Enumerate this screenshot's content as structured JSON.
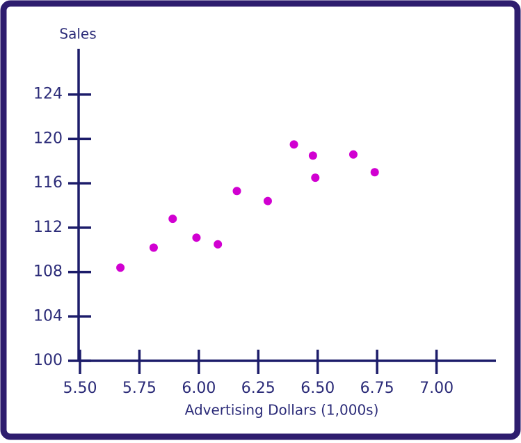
{
  "chart_data": {
    "type": "scatter",
    "xlabel": "Advertising Dollars (1,000s)",
    "ylabel": "Sales",
    "x": [
      5.67,
      5.81,
      5.89,
      5.99,
      6.08,
      6.16,
      6.29,
      6.4,
      6.48,
      6.49,
      6.65,
      6.74
    ],
    "values": [
      108.4,
      110.2,
      112.8,
      111.1,
      110.5,
      115.3,
      114.4,
      119.5,
      118.5,
      116.5,
      118.6,
      117.0
    ],
    "color": "#d100d1",
    "xlim": [
      5.5,
      7.25
    ],
    "ylim": [
      100,
      128
    ],
    "xticks": [
      {
        "value": 5.5,
        "label": "5.50"
      },
      {
        "value": 5.75,
        "label": "5.75"
      },
      {
        "value": 6,
        "label": "6.00"
      },
      {
        "value": 6.25,
        "label": "6.25"
      },
      {
        "value": 6.5,
        "label": "6.50"
      },
      {
        "value": 6.75,
        "label": "6.75"
      },
      {
        "value": 7,
        "label": "7.00"
      }
    ],
    "yticks": [
      100,
      104,
      108,
      112,
      116,
      120,
      124
    ]
  }
}
